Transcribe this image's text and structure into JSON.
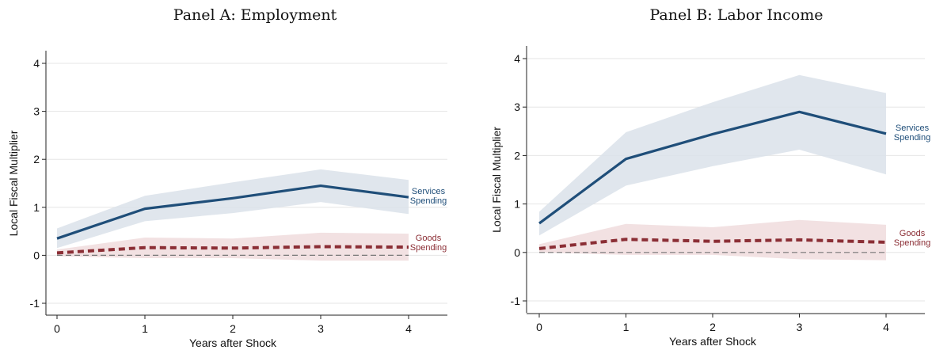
{
  "chart_data": [
    {
      "type": "line",
      "title": "Panel A: Employment",
      "xlabel": "Years after Shock",
      "ylabel": "Local Fiscal Multiplier",
      "x": [
        0,
        1,
        2,
        3,
        4
      ],
      "xticks": [
        "0",
        "1",
        "2",
        "3",
        "4"
      ],
      "yticks": [
        "-1",
        "0",
        "1",
        "2",
        "3",
        "4"
      ],
      "xlim": [
        0,
        4
      ],
      "ylim": [
        -1,
        4
      ],
      "grid": "horizontal",
      "series": [
        {
          "name": "Services Spending",
          "label_lines": [
            "Services",
            "Spending"
          ],
          "values": [
            0.35,
            0.97,
            1.19,
            1.45,
            1.21
          ],
          "ci_lower": [
            0.15,
            0.71,
            0.88,
            1.11,
            0.86
          ],
          "ci_upper": [
            0.56,
            1.24,
            1.52,
            1.79,
            1.57
          ],
          "color": "#1f4e79",
          "band_color": "#dbe2ea",
          "style": "solid"
        },
        {
          "name": "Goods Spending",
          "label_lines": [
            "Goods",
            "Spending"
          ],
          "values": [
            0.05,
            0.16,
            0.15,
            0.18,
            0.17
          ],
          "ci_lower": [
            -0.02,
            -0.06,
            -0.06,
            -0.11,
            -0.11
          ],
          "ci_upper": [
            0.12,
            0.37,
            0.35,
            0.47,
            0.45
          ],
          "color": "#8b2e35",
          "band_color": "#f0dcdd",
          "style": "dashed"
        }
      ],
      "reference_line": {
        "y": 0,
        "color": "#777777",
        "style": "dashed"
      }
    },
    {
      "type": "line",
      "title": "Panel B: Labor Income",
      "xlabel": "Years after Shock",
      "ylabel": "Local Fiscal Multiplier",
      "x": [
        0,
        1,
        2,
        3,
        4
      ],
      "xticks": [
        "0",
        "1",
        "2",
        "3",
        "4"
      ],
      "yticks": [
        "-1",
        "0",
        "1",
        "2",
        "3",
        "4"
      ],
      "xlim": [
        0,
        4
      ],
      "ylim": [
        -1,
        4
      ],
      "grid": "horizontal",
      "series": [
        {
          "name": "Services Spending",
          "label_lines": [
            "Services",
            "Spending"
          ],
          "values": [
            0.6,
            1.93,
            2.44,
            2.9,
            2.45
          ],
          "ci_lower": [
            0.35,
            1.38,
            1.78,
            2.12,
            1.61
          ],
          "ci_upper": [
            0.84,
            2.48,
            3.1,
            3.66,
            3.29
          ],
          "color": "#1f4e79",
          "band_color": "#dbe2ea",
          "style": "solid"
        },
        {
          "name": "Goods Spending",
          "label_lines": [
            "Goods",
            "Spending"
          ],
          "values": [
            0.08,
            0.27,
            0.23,
            0.26,
            0.21
          ],
          "ci_lower": [
            0.0,
            -0.05,
            -0.05,
            -0.14,
            -0.16
          ],
          "ci_upper": [
            0.17,
            0.59,
            0.52,
            0.67,
            0.57
          ],
          "color": "#8b2e35",
          "band_color": "#f0dcdd",
          "style": "dashed"
        }
      ],
      "reference_line": {
        "y": 0,
        "color": "#777777",
        "style": "dashed"
      }
    }
  ]
}
